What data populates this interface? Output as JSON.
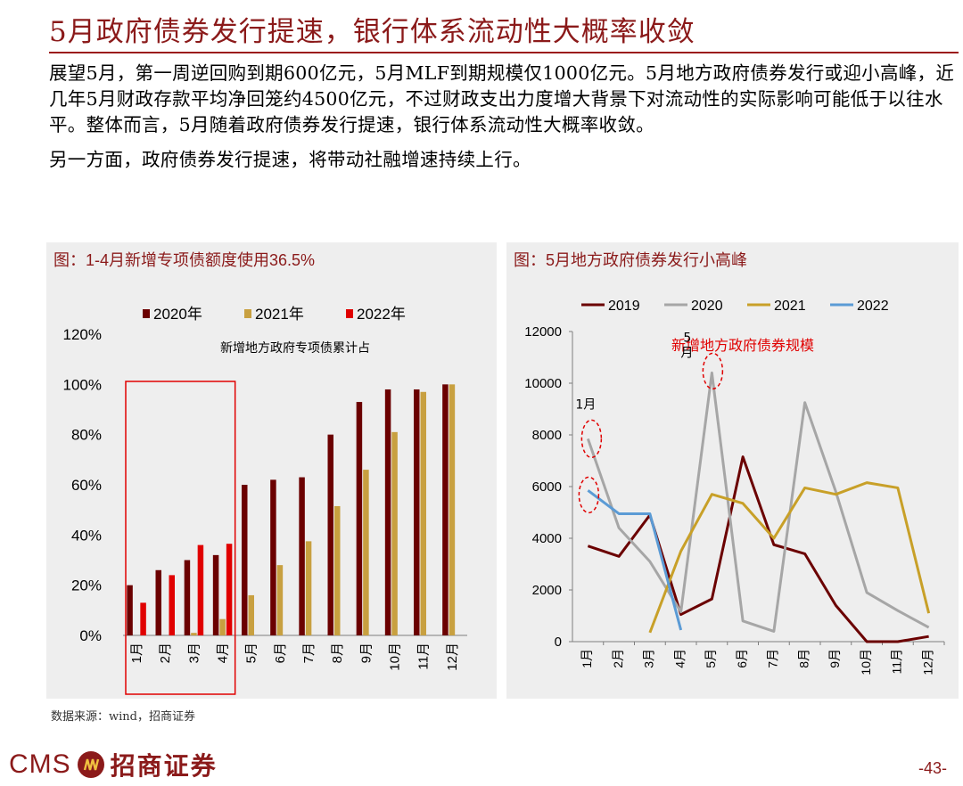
{
  "page": {
    "title": "5月政府债券发行提速，银行体系流动性大概率收敛",
    "paragraph1": "展望5月，第一周逆回购到期600亿元，5月MLF到期规模仅1000亿元。5月地方政府债券发行或迎小高峰，近几年5月财政存款平均净回笼约4500亿元，不过财政支出力度增大背景下对流动性的实际影响可能低于以往水平。整体而言，5月随着政府债券发行提速，银行体系流动性大概率收敛。",
    "paragraph2": "另一方面，政府债券发行提速，将带动社融增速持续上行。",
    "source": "数据来源：wind，招商证券",
    "logo_text": "CMS",
    "logo_cn": "招商证券",
    "page_number": "-43-"
  },
  "chart_data": [
    {
      "type": "bar",
      "title": "图：1-4月新增专项债额度使用36.5%",
      "annotation": "新增地方政府专项债累计占",
      "categories": [
        "1月",
        "2月",
        "3月",
        "4月",
        "5月",
        "6月",
        "7月",
        "8月",
        "9月",
        "10月",
        "11月",
        "12月"
      ],
      "series": [
        {
          "name": "2020年",
          "color": "#6b0000",
          "values": [
            0.2,
            0.26,
            0.3,
            0.32,
            0.6,
            0.62,
            0.63,
            0.8,
            0.93,
            0.98,
            0.98,
            1.0
          ]
        },
        {
          "name": "2021年",
          "color": "#c8a040",
          "values": [
            0.0,
            0.0,
            0.01,
            0.065,
            0.16,
            0.28,
            0.375,
            0.515,
            0.66,
            0.81,
            0.97,
            1.0
          ]
        },
        {
          "name": "2022年",
          "color": "#e00000",
          "values": [
            0.13,
            0.24,
            0.36,
            0.365,
            null,
            null,
            null,
            null,
            null,
            null,
            null,
            null
          ]
        }
      ],
      "ylim": [
        0,
        1.2
      ],
      "yticks": [
        "0%",
        "20%",
        "40%",
        "60%",
        "80%",
        "100%",
        "120%"
      ],
      "highlight": "1月-4月",
      "legend_position": "top"
    },
    {
      "type": "line",
      "title": "图：5月地方政府债券发行小高峰",
      "annotation": "新增地方政府债券规模",
      "callouts": [
        "1月",
        "5\n月"
      ],
      "categories": [
        "1月",
        "2月",
        "3月",
        "4月",
        "5月",
        "6月",
        "7月",
        "8月",
        "9月",
        "10月",
        "11月",
        "12月"
      ],
      "series": [
        {
          "name": "2019",
          "color": "#6b0000",
          "values": [
            3700,
            3300,
            4900,
            1050,
            1650,
            7150,
            3750,
            3400,
            1400,
            0,
            0,
            200
          ]
        },
        {
          "name": "2020",
          "color": "#a6a6a6",
          "values": [
            7850,
            4400,
            3100,
            1150,
            10400,
            800,
            400,
            9250,
            5800,
            1900,
            1200,
            550
          ]
        },
        {
          "name": "2021",
          "color": "#c8a028",
          "values": [
            null,
            null,
            350,
            3500,
            5700,
            5350,
            4000,
            5950,
            5700,
            6150,
            5950,
            1100
          ]
        },
        {
          "name": "2022",
          "color": "#5b9bd5",
          "values": [
            5850,
            4950,
            4950,
            450,
            null,
            null,
            null,
            null,
            null,
            null,
            null,
            null
          ]
        }
      ],
      "ylim": [
        0,
        12000
      ],
      "yticks": [
        "0",
        "2000",
        "4000",
        "6000",
        "8000",
        "10000",
        "12000"
      ],
      "legend_position": "top"
    }
  ]
}
